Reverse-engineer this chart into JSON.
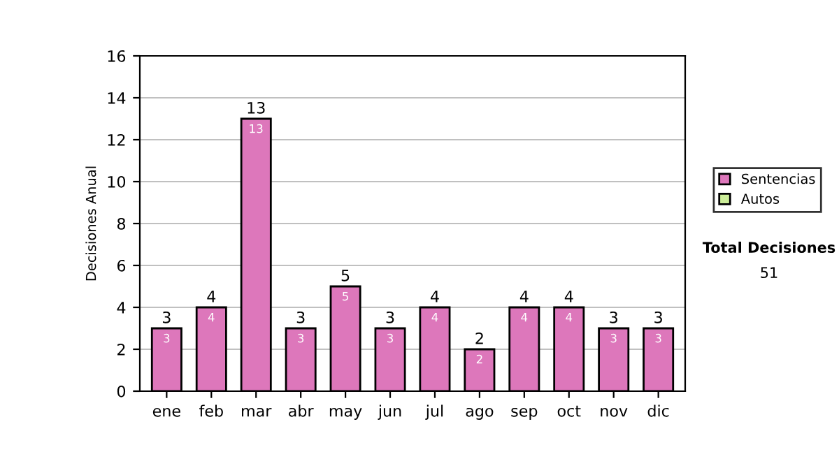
{
  "chart_data": {
    "type": "bar",
    "stacked": true,
    "ylabel": "Decisiones Anual",
    "categories": [
      "ene",
      "feb",
      "mar",
      "abr",
      "may",
      "jun",
      "jul",
      "ago",
      "sep",
      "oct",
      "nov",
      "dic"
    ],
    "series": [
      {
        "name": "Sentencias",
        "color": "#dd77bb",
        "values": [
          3,
          4,
          13,
          3,
          5,
          3,
          4,
          2,
          4,
          4,
          3,
          3
        ],
        "value_labels": [
          "3",
          "4",
          "13",
          "3",
          "5",
          "3",
          "4",
          "2",
          "4",
          "4",
          "3",
          "3"
        ]
      },
      {
        "name": "Autos",
        "color": "#ccee99",
        "values": [
          null,
          null,
          null,
          null,
          null,
          null,
          null,
          null,
          null,
          null,
          null,
          null
        ]
      }
    ],
    "ylim": [
      0,
      16
    ],
    "yticks": [
      0,
      2,
      4,
      6,
      8,
      10,
      12,
      14,
      16
    ],
    "grid": "y",
    "legend": "right",
    "totals": [
      "3",
      "4",
      "13",
      "3",
      "5",
      "3",
      "4",
      "2",
      "4",
      "4",
      "3",
      "3"
    ],
    "annotations": [
      "Total Decisiones",
      "51"
    ]
  }
}
